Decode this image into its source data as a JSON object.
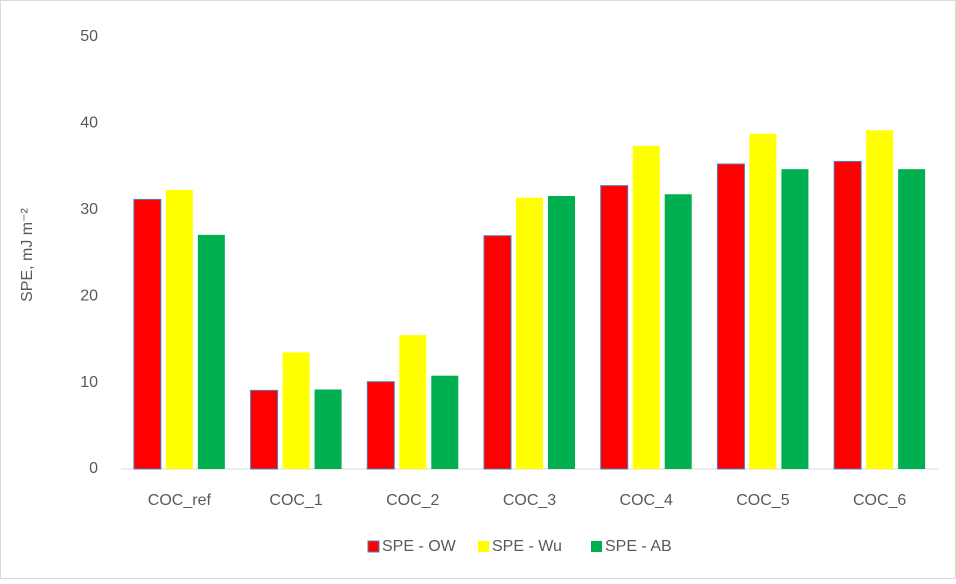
{
  "chart_data": {
    "type": "bar",
    "ylabel": "SPE, mJ m⁻²",
    "categories": [
      "COC_ref",
      "COC_1",
      "COC_2",
      "COC_3",
      "COC_4",
      "COC_5",
      "COC_6"
    ],
    "series": [
      {
        "name": "SPE - OW",
        "color": "#ff0000",
        "values": [
          31.2,
          9.1,
          10.1,
          27.0,
          32.8,
          35.3,
          35.6
        ]
      },
      {
        "name": "SPE - Wu",
        "color": "#ffff00",
        "values": [
          32.3,
          13.5,
          15.5,
          31.4,
          37.4,
          38.8,
          39.2
        ]
      },
      {
        "name": "SPE - AB",
        "color": "#00b050",
        "values": [
          27.1,
          9.2,
          10.8,
          31.6,
          31.8,
          34.7,
          34.7
        ]
      }
    ],
    "ylim": [
      0,
      50
    ],
    "yticks": [
      0,
      10,
      20,
      30,
      40,
      50
    ],
    "grid": false,
    "legend": "bottom"
  }
}
